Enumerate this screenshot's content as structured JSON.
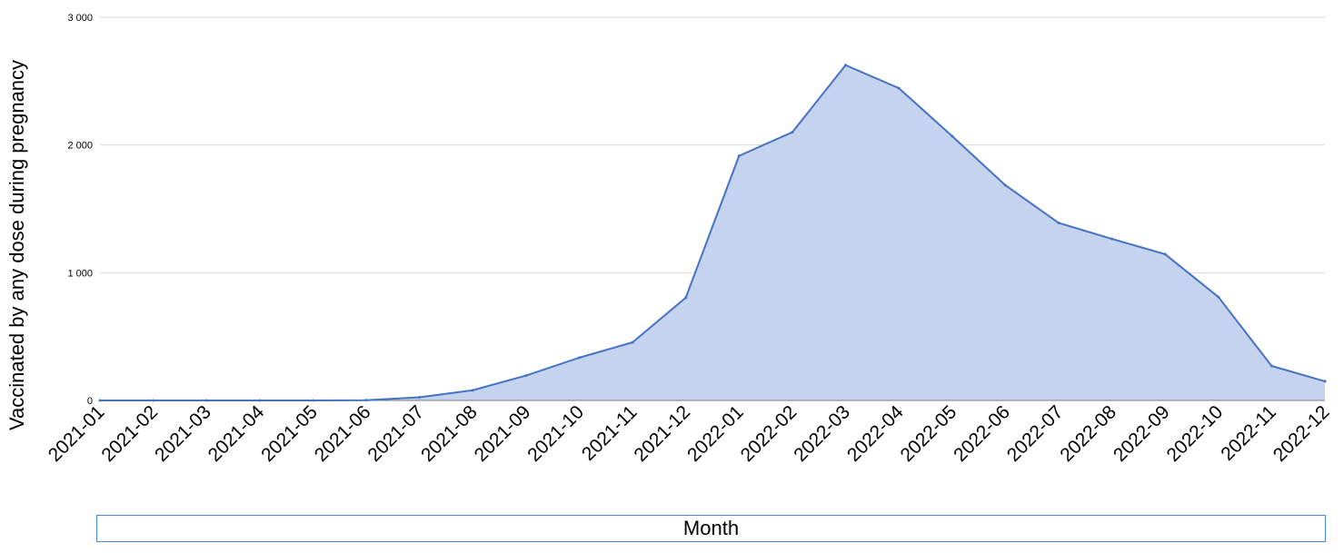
{
  "chart_data": {
    "type": "area",
    "title": "",
    "xlabel": "Month",
    "ylabel": "Vaccinated by any dose during pregnancy",
    "ylim": [
      0,
      3000
    ],
    "yticks": [
      0,
      1000,
      2000,
      3000
    ],
    "ytick_labels": [
      "0",
      "1 000",
      "2 000",
      "3 000"
    ],
    "grid": true,
    "legend": "none",
    "colors": {
      "line": "#4472c4",
      "fill": "#c5d3ee",
      "grid": "#d9d9d9",
      "axis": "#7f7f7f",
      "xlabel_border": "#4a86e8"
    },
    "categories": [
      "2021-01",
      "2021-02",
      "2021-03",
      "2021-04",
      "2021-05",
      "2021-06",
      "2021-07",
      "2021-08",
      "2021-09",
      "2021-10",
      "2021-11",
      "2021-12",
      "2022-01",
      "2022-02",
      "2022-03",
      "2022-04",
      "2022-05",
      "2022-06",
      "2022-07",
      "2022-08",
      "2022-09",
      "2022-10",
      "2022-11",
      "2022-12"
    ],
    "series": [
      {
        "values": [
          0,
          0,
          0,
          0,
          0,
          2,
          25,
          80,
          195,
          335,
          455,
          805,
          1915,
          2100,
          2625,
          2445,
          2070,
          1685,
          1390,
          1265,
          1145,
          810,
          270,
          150
        ]
      }
    ]
  }
}
